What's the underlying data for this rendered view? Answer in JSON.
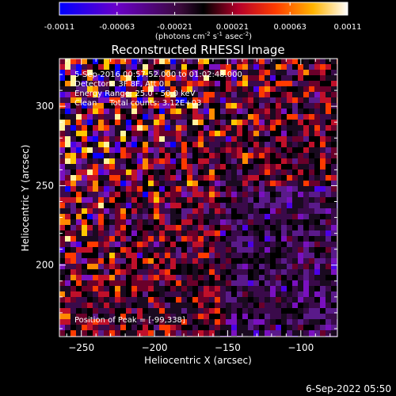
{
  "chart_data": {
    "type": "heatmap",
    "title": "Reconstructed RHESSI Image",
    "colorbar": {
      "ticks": [
        "-0.0011",
        "-0.00063",
        "-0.00021",
        "0.00021",
        "0.00063",
        "0.0011"
      ],
      "unit_parts": [
        "(photons cm",
        "-2",
        " s",
        "-1",
        " asec",
        "-2",
        ")"
      ],
      "colors": [
        "#0000ff",
        "#6a00c8",
        "#3a0a3a",
        "#000000",
        "#b4002a",
        "#ff3c00",
        "#ffb400",
        "#ffffff"
      ]
    },
    "xlabel": "Heliocentric X (arcsec)",
    "ylabel": "Heliocentric Y (arcsec)",
    "xlim": [
      -265,
      -75
    ],
    "ylim": [
      155,
      330
    ],
    "xticks": [
      -250,
      -200,
      -150,
      -100
    ],
    "yticks": [
      200,
      250,
      300
    ],
    "annotations": [
      "5-Sep-2016 00:57:52.000 to 01:02:48.000",
      "Detectors: 3F 8F, Att 0",
      "Energy Range: 25.0 - 50.0 keV",
      "Clean     Total counts: 3.12E+03"
    ],
    "peak_label": "Position of Peak = [-99,338]",
    "grid": false
  },
  "footer": {
    "timestamp": "6-Sep-2022 05:50"
  }
}
